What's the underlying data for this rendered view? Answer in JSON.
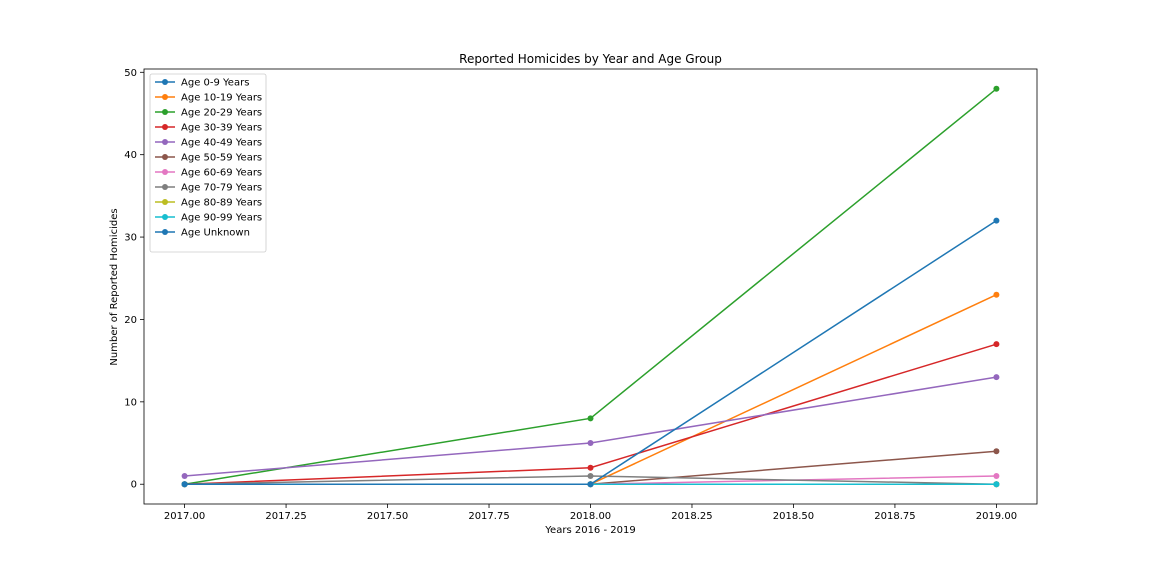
{
  "chart_data": {
    "type": "line",
    "title": "Reported Homicides by Year and Age Group",
    "xlabel": "Years 2016 - 2019",
    "ylabel": "Number of Reported Homicides",
    "x": [
      2017,
      2018,
      2019
    ],
    "xlim": [
      2016.9,
      2019.1
    ],
    "ylim": [
      -2.4,
      50.4
    ],
    "xticks": [
      "2017.00",
      "2017.25",
      "2017.50",
      "2017.75",
      "2018.00",
      "2018.25",
      "2018.50",
      "2018.75",
      "2019.00"
    ],
    "yticks": [
      "0",
      "10",
      "20",
      "30",
      "40",
      "50"
    ],
    "grid": false,
    "legend_position": "top-left",
    "series": [
      {
        "name": "Age 0-9 Years",
        "color": "#1f77b4",
        "values": [
          0,
          0,
          0
        ]
      },
      {
        "name": "Age 10-19 Years",
        "color": "#ff7f0e",
        "values": [
          0,
          0,
          23
        ]
      },
      {
        "name": "Age 20-29 Years",
        "color": "#2ca02c",
        "values": [
          0,
          8,
          48
        ]
      },
      {
        "name": "Age 30-39 Years",
        "color": "#d62728",
        "values": [
          0,
          2,
          17
        ]
      },
      {
        "name": "Age 40-49 Years",
        "color": "#9467bd",
        "values": [
          1,
          5,
          13
        ]
      },
      {
        "name": "Age 50-59 Years",
        "color": "#8c564b",
        "values": [
          0,
          0,
          4
        ]
      },
      {
        "name": "Age 60-69 Years",
        "color": "#e377c2",
        "values": [
          0,
          0,
          1
        ]
      },
      {
        "name": "Age 70-79 Years",
        "color": "#7f7f7f",
        "values": [
          0,
          1,
          0
        ]
      },
      {
        "name": "Age 80-89 Years",
        "color": "#bcbd22",
        "values": [
          0,
          0,
          0
        ]
      },
      {
        "name": "Age 90-99 Years",
        "color": "#17becf",
        "values": [
          0,
          0,
          0
        ]
      },
      {
        "name": "Age Unknown",
        "color": "#1f77b4",
        "values": [
          0,
          0,
          32
        ]
      }
    ]
  }
}
